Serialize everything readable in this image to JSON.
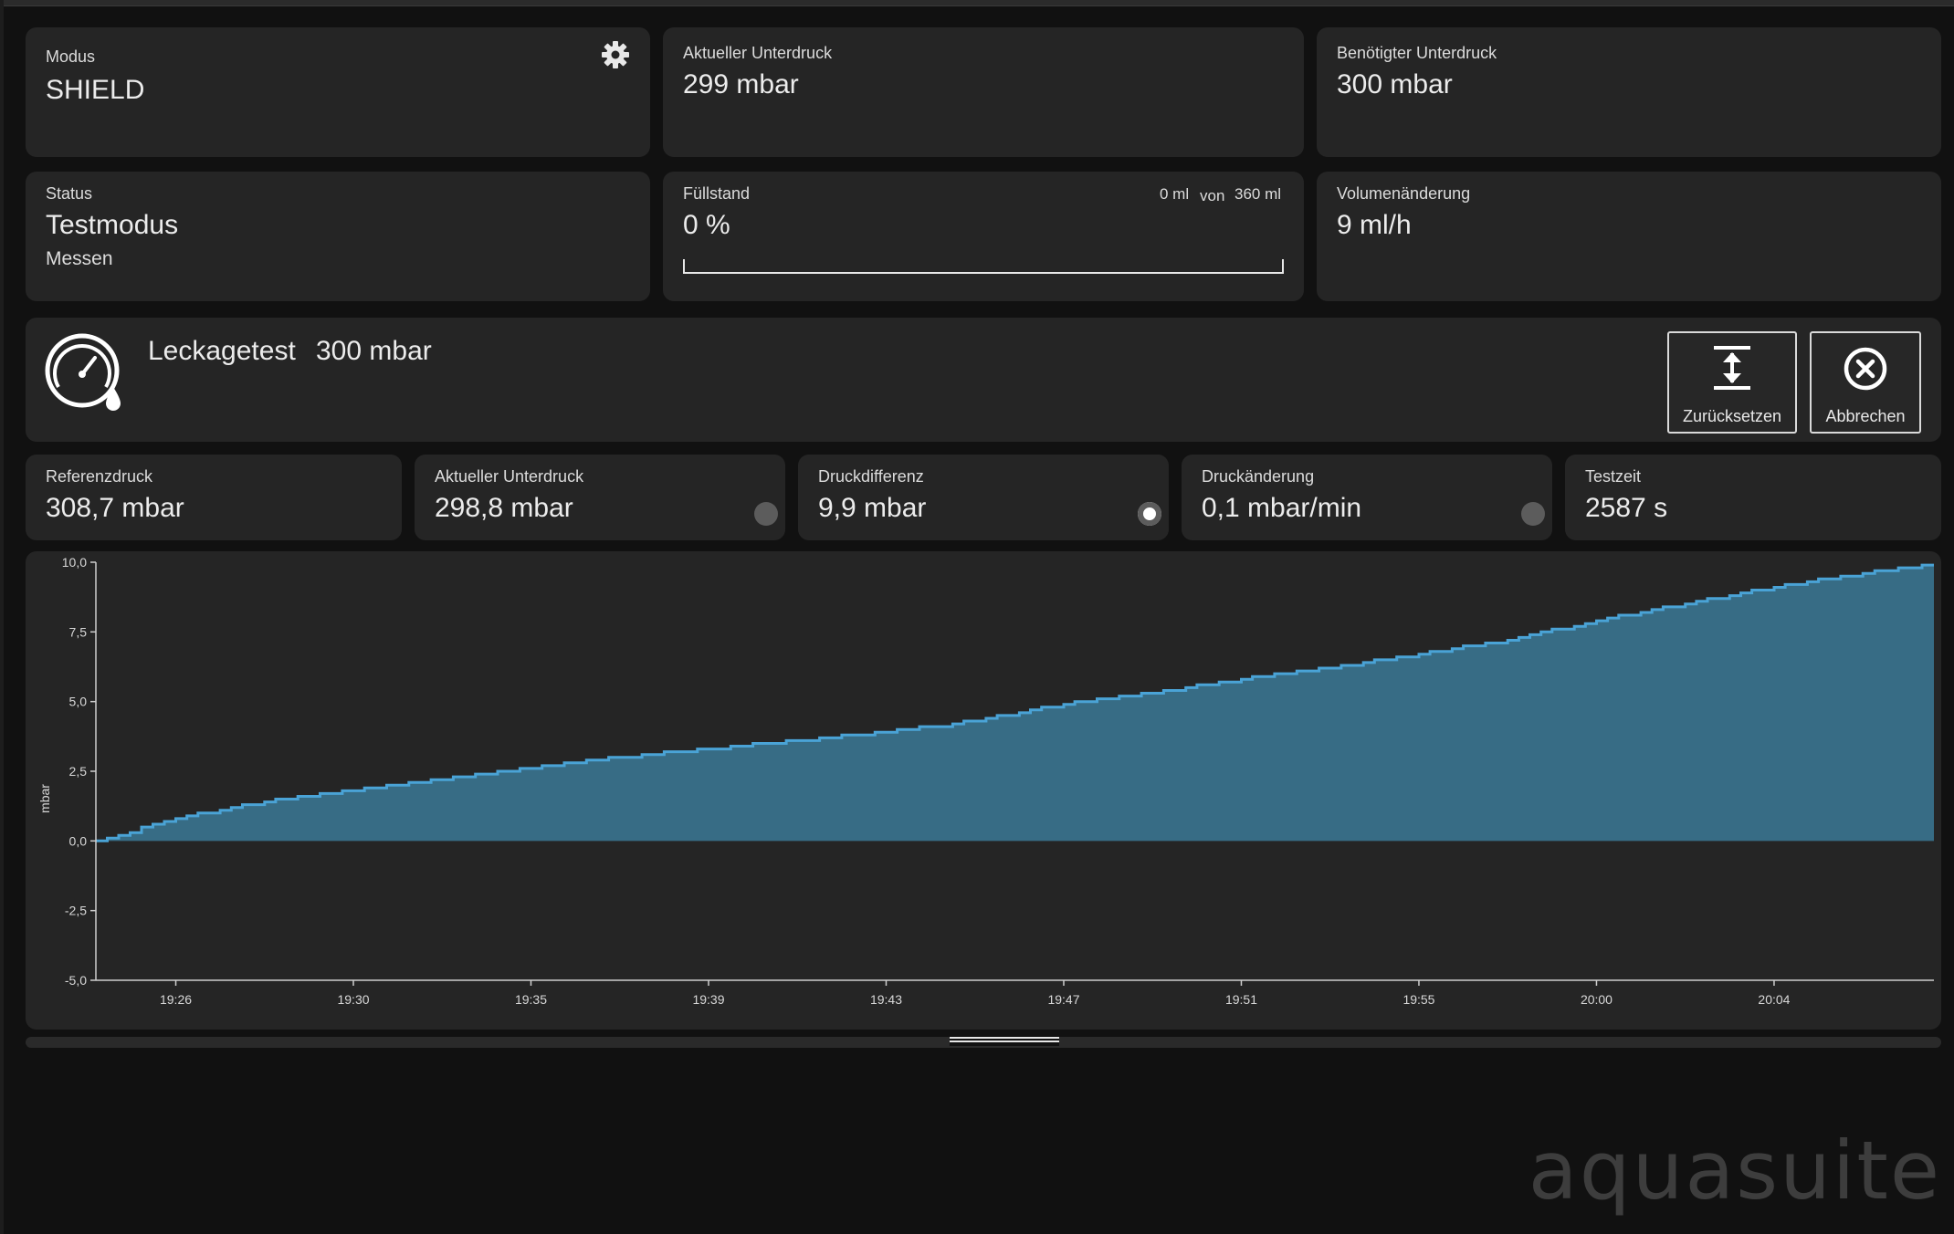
{
  "top_cards": {
    "mode": {
      "label": "Modus",
      "value": "SHIELD",
      "icon": "gear-icon"
    },
    "current_vacuum": {
      "label": "Aktueller Unterdruck",
      "value": "299 mbar"
    },
    "required_vacuum": {
      "label": "Benötigter Unterdruck",
      "value": "300 mbar"
    },
    "status": {
      "label": "Status",
      "value": "Testmodus",
      "sub": "Messen"
    },
    "fill_level": {
      "label": "Füllstand",
      "value": "0 %",
      "current_ml": "0 ml",
      "von": "von",
      "max_ml": "360 ml",
      "progress_fraction": 0
    },
    "volume_change": {
      "label": "Volumenänderung",
      "value": "9 ml/h"
    }
  },
  "leak_test": {
    "title": "Leckagetest",
    "pressure": "300 mbar",
    "icon": "pressure-gauge-drop-icon",
    "reset_label": "Zurücksetzen",
    "cancel_label": "Abbrechen"
  },
  "measurements": [
    {
      "label": "Referenzdruck",
      "value": "308,7 mbar"
    },
    {
      "label": "Aktueller Unterdruck",
      "value": "298,8 mbar",
      "indicator": "inactive"
    },
    {
      "label": "Druckdifferenz",
      "value": "9,9 mbar",
      "indicator": "active"
    },
    {
      "label": "Druckänderung",
      "value": "0,1 mbar/min",
      "indicator": "inactive"
    },
    {
      "label": "Testzeit",
      "value": "2587 s"
    }
  ],
  "watermark": "aquasuite",
  "colors": {
    "area_fill": "#376c85",
    "line": "#4aa3d6",
    "card": "#252525",
    "background": "#111111"
  },
  "chart_data": {
    "type": "area",
    "title": "",
    "xlabel": "",
    "ylabel": "mbar",
    "ylim": [
      -5.0,
      10.0
    ],
    "yticks": [
      "10,0",
      "7,5",
      "5,0",
      "2,5",
      "0,0",
      "-2,5",
      "-5,0"
    ],
    "ytick_values": [
      10.0,
      7.5,
      5.0,
      2.5,
      0.0,
      -2.5,
      -5.0
    ],
    "xticks": [
      "19:26",
      "19:30",
      "19:35",
      "19:39",
      "19:43",
      "19:47",
      "19:51",
      "19:55",
      "20:00",
      "20:04"
    ],
    "xtick_minutes": [
      0,
      4,
      8,
      12,
      16,
      20,
      24,
      28,
      32,
      36
    ],
    "grid": false,
    "series": [
      {
        "x_minutes": [
          -1.8,
          0,
          2,
          4,
          6,
          8,
          10,
          12,
          14,
          16,
          18,
          20,
          22,
          24,
          26,
          28,
          30,
          32,
          34,
          36,
          38,
          39.6
        ],
        "values": [
          0.0,
          0.8,
          1.4,
          1.8,
          2.2,
          2.6,
          3.0,
          3.3,
          3.6,
          3.9,
          4.3,
          4.9,
          5.3,
          5.8,
          6.2,
          6.7,
          7.2,
          7.9,
          8.5,
          9.1,
          9.6,
          9.9
        ]
      }
    ]
  }
}
